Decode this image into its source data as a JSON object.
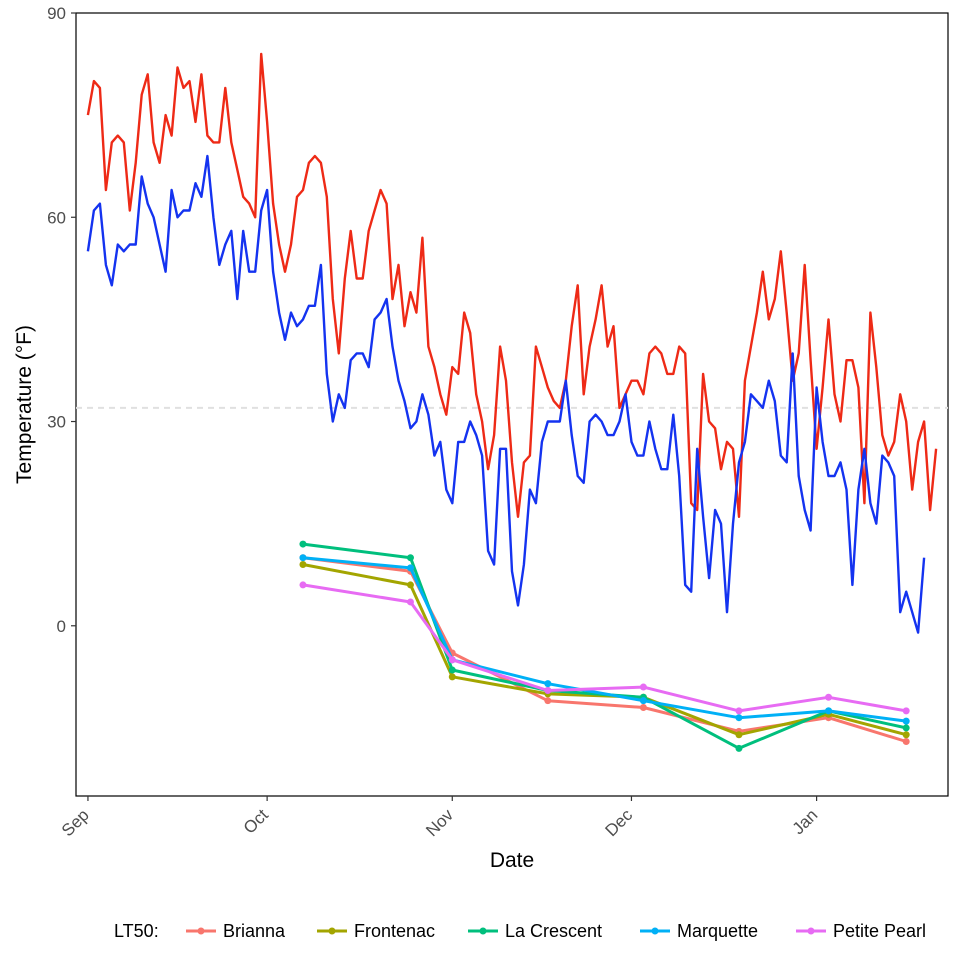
{
  "chart_data": {
    "type": "line",
    "title": "",
    "xlabel": "Date",
    "ylabel": "Temperature (°F)",
    "ylim": [
      -25,
      90
    ],
    "x_range": [
      "2017-08-30",
      "2018-01-23"
    ],
    "x_ticks": [
      {
        "label": "Sep",
        "date": "2017-09-01"
      },
      {
        "label": "Oct",
        "date": "2017-10-01"
      },
      {
        "label": "Nov",
        "date": "2017-11-01"
      },
      {
        "label": "Dec",
        "date": "2017-12-01"
      },
      {
        "label": "Jan",
        "date": "2018-01-01"
      }
    ],
    "y_ticks": [
      0,
      30,
      60,
      90
    ],
    "grid": false,
    "reference_line": {
      "y": 32,
      "style": "dashed",
      "color": "#e0e0e0"
    },
    "temperature_series": [
      {
        "color": "#ee2a16",
        "start_date": "2017-09-01",
        "values": [
          75,
          80,
          79,
          64,
          71,
          72,
          71,
          61,
          68,
          78,
          81,
          71,
          68,
          75,
          72,
          82,
          79,
          80,
          74,
          81,
          72,
          71,
          71,
          79,
          71,
          67,
          63,
          62,
          60,
          84,
          74,
          62,
          56,
          52,
          56,
          63,
          64,
          68,
          69,
          68,
          63,
          48,
          40,
          51,
          58,
          51,
          51,
          58,
          61,
          64,
          62,
          48,
          53,
          44,
          49,
          46,
          57,
          41,
          38,
          34,
          31,
          38,
          37,
          46,
          43,
          34,
          30,
          23,
          28,
          41,
          36,
          24,
          16,
          24,
          25,
          41,
          38,
          35,
          33,
          32,
          36,
          44,
          50,
          34,
          41,
          45,
          50,
          41,
          44,
          32,
          34,
          36,
          36,
          34,
          40,
          41,
          40,
          37,
          37,
          41,
          40,
          18,
          17,
          37,
          30,
          29,
          23,
          27,
          26,
          16,
          36,
          41,
          46,
          52,
          45,
          48,
          55,
          46,
          36,
          40,
          53,
          39,
          26,
          35,
          45,
          34,
          30,
          39,
          39,
          35,
          18,
          46,
          38,
          28,
          25,
          27,
          34,
          30,
          20,
          27,
          30,
          17,
          26
        ]
      },
      {
        "color": "#1433f0",
        "start_date": "2017-09-01",
        "values": [
          55,
          61,
          62,
          53,
          50,
          56,
          55,
          56,
          56,
          66,
          62,
          60,
          56,
          52,
          64,
          60,
          61,
          61,
          65,
          63,
          69,
          60,
          53,
          56,
          58,
          48,
          58,
          52,
          52,
          61,
          64,
          52,
          46,
          42,
          46,
          44,
          45,
          47,
          47,
          53,
          37,
          30,
          34,
          32,
          39,
          40,
          40,
          38,
          45,
          46,
          48,
          41,
          36,
          33,
          29,
          30,
          34,
          31,
          25,
          27,
          20,
          18,
          27,
          27,
          30,
          28,
          25,
          11,
          9,
          26,
          26,
          8,
          3,
          9,
          20,
          18,
          27,
          30,
          30,
          30,
          36,
          28,
          22,
          21,
          30,
          31,
          30,
          28,
          28,
          30,
          34,
          27,
          25,
          25,
          30,
          26,
          23,
          23,
          31,
          22,
          6,
          5,
          26,
          16,
          7,
          17,
          15,
          2,
          15,
          24,
          27,
          34,
          33,
          32,
          36,
          33,
          25,
          24,
          40,
          22,
          17,
          14,
          35,
          27,
          22,
          22,
          24,
          20,
          6,
          20,
          26,
          18,
          15,
          25,
          24,
          22,
          2,
          5,
          2,
          -1,
          10
        ]
      }
    ],
    "lt50_legend_title": "LT50:",
    "series": [
      {
        "name": "Brianna",
        "color": "#f8766d",
        "dates": [
          "2017-10-07",
          "2017-10-25",
          "2017-11-01",
          "2017-11-17",
          "2017-12-03",
          "2017-12-19",
          "2018-01-03",
          "2018-01-16"
        ],
        "values": [
          10,
          8,
          -4,
          -11,
          -12,
          -15.5,
          -13.5,
          -17
        ]
      },
      {
        "name": "Frontenac",
        "color": "#a3a500",
        "dates": [
          "2017-10-07",
          "2017-10-25",
          "2017-11-01",
          "2017-11-17",
          "2017-12-03",
          "2017-12-19",
          "2018-01-03",
          "2018-01-16"
        ],
        "values": [
          9,
          6,
          -7.5,
          -10,
          -10.5,
          -16,
          -13,
          -16
        ]
      },
      {
        "name": "La Crescent",
        "color": "#00bf7d",
        "dates": [
          "2017-10-07",
          "2017-10-25",
          "2017-11-01",
          "2017-11-17",
          "2017-12-03",
          "2017-12-19",
          "2018-01-03",
          "2018-01-16"
        ],
        "values": [
          12,
          10,
          -6.5,
          -9.5,
          -10.5,
          -18,
          -12.5,
          -15
        ]
      },
      {
        "name": "Marquette",
        "color": "#00b0f6",
        "dates": [
          "2017-10-07",
          "2017-10-25",
          "2017-11-01",
          "2017-11-17",
          "2017-12-03",
          "2017-12-19",
          "2018-01-03",
          "2018-01-16"
        ],
        "values": [
          10,
          8.5,
          -5,
          -8.5,
          -11,
          -13.5,
          -12.5,
          -14
        ]
      },
      {
        "name": "Petite Pearl",
        "color": "#e76bf3",
        "dates": [
          "2017-10-07",
          "2017-10-25",
          "2017-11-01",
          "2017-11-17",
          "2017-12-03",
          "2017-12-19",
          "2018-01-03",
          "2018-01-16"
        ],
        "values": [
          6,
          3.5,
          -5,
          -9.5,
          -9,
          -12.5,
          -10.5,
          -12.5
        ]
      }
    ],
    "legend_position": "bottom"
  }
}
